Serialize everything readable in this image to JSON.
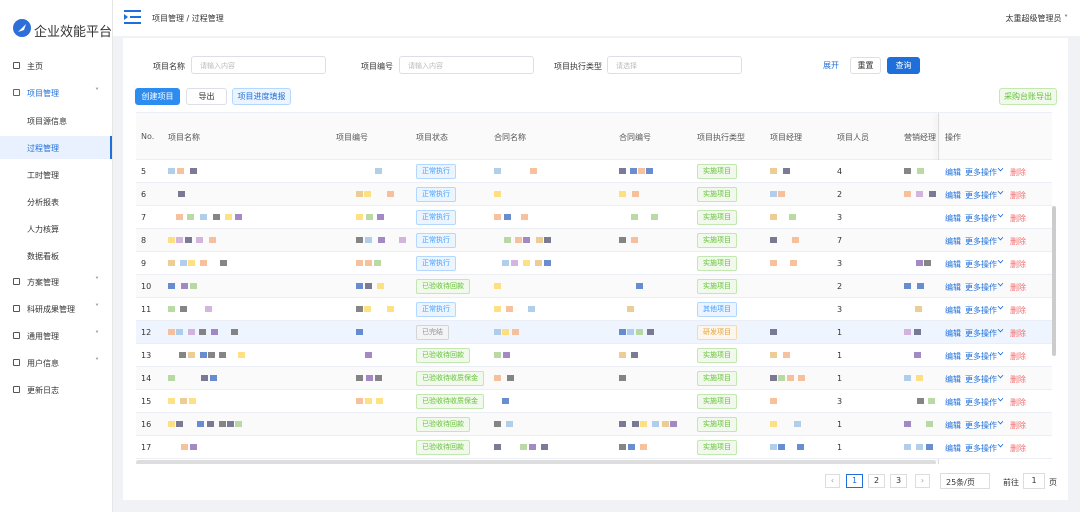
{
  "brand": "企业效能平台",
  "menu": [
    {
      "label": "主页"
    },
    {
      "label": "项目管理",
      "children": [
        "项目源信息",
        "过程管理",
        "工时管理",
        "分析报表",
        "人力核算",
        "数据看板"
      ]
    },
    {
      "label": "方案管理"
    },
    {
      "label": "科研成果管理"
    },
    {
      "label": "通用管理"
    },
    {
      "label": "用户信息"
    },
    {
      "label": "更新日志"
    }
  ],
  "header": {
    "breadcrumb": "项目管理 / 过程管理",
    "user": "太重超级管理员"
  },
  "filters": [
    {
      "label": "项目名称",
      "placeholder": "请输入内容"
    },
    {
      "label": "项目编号",
      "placeholder": "请输入内容"
    },
    {
      "label": "项目执行类型",
      "placeholder": "请选择"
    }
  ],
  "filter_buttons": {
    "expand": "展开",
    "reset": "重置",
    "search": "查询"
  },
  "toolbar": {
    "left": [
      "创建项目",
      "导出",
      "项目进度填报"
    ],
    "right": "采购台账导出"
  },
  "table": {
    "columns": [
      "No.",
      "项目名称",
      "项目编号",
      "项目状态",
      "合同名称",
      "合同编号",
      "项目执行类型",
      "项目经理",
      "项目人员",
      "营销经理",
      "操作"
    ],
    "rows": [
      {
        "no": 5,
        "status": "正常执行",
        "type": "实施项目",
        "members": 4
      },
      {
        "no": 6,
        "status": "正常执行",
        "type": "实施项目",
        "members": 2
      },
      {
        "no": 7,
        "status": "正常执行",
        "type": "实施项目",
        "members": 3
      },
      {
        "no": 8,
        "status": "正常执行",
        "type": "实施项目",
        "members": 7
      },
      {
        "no": 9,
        "status": "正常执行",
        "type": "实施项目",
        "members": 3
      },
      {
        "no": 10,
        "status": "已验收待回款",
        "type": "实施项目",
        "members": 2
      },
      {
        "no": 11,
        "status": "正常执行",
        "type": "其他项目",
        "members": 3
      },
      {
        "no": 12,
        "status": "已完结",
        "type": "研发项目",
        "members": 1
      },
      {
        "no": 13,
        "status": "已验收待回款",
        "type": "实施项目",
        "members": 1
      },
      {
        "no": 14,
        "status": "已验收待收质保金",
        "type": "实施项目",
        "members": 1
      },
      {
        "no": 15,
        "status": "已验收待收质保金",
        "type": "实施项目",
        "members": 3
      },
      {
        "no": 16,
        "status": "已验收待回款",
        "type": "实施项目",
        "members": 1
      },
      {
        "no": 17,
        "status": "已验收待回款",
        "type": "实施项目",
        "members": 1
      }
    ],
    "actions": [
      "编辑",
      "更多操作",
      "删除"
    ]
  },
  "pagination": {
    "pages": [
      1,
      2,
      3
    ],
    "current": 1,
    "page_size": "25条/页",
    "goto": "前往",
    "goto_value": 1,
    "page_unit": "页"
  }
}
